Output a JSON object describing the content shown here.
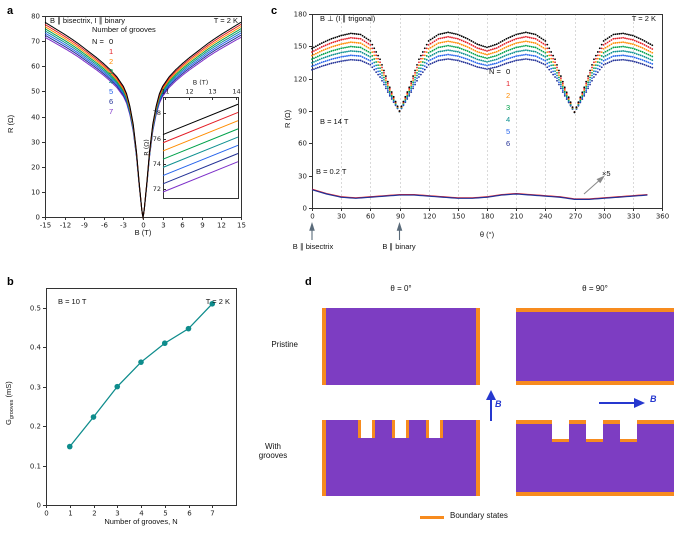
{
  "panel_letters": {
    "a": "a",
    "b": "b",
    "c": "c",
    "d": "d"
  },
  "colors": {
    "series": [
      "#000000",
      "#e41e26",
      "#ff8c00",
      "#00a24b",
      "#0d9090",
      "#2563eb",
      "#223096",
      "#7d30c9"
    ],
    "panel_b_line": "#0e8c8c",
    "axis": "#333333",
    "grid": "#d9d9d9",
    "purple": "#7d3dc2",
    "orange": "#f78b1e",
    "arrow_blue": "#2638cf",
    "annotation_arrow": "#8a8a8a",
    "tick_arrow": "#5a6b7a"
  },
  "chart_data": [
    {
      "id": "a",
      "type": "line",
      "title_left": "B ∥ bisectrix, I ∥ binary",
      "title_right": "T = 2 K",
      "xlabel": "B (T)",
      "ylabel": "R (Ω)",
      "xlim": [
        -15,
        15
      ],
      "ylim": [
        0,
        80
      ],
      "xticks": [
        -15,
        -12,
        -9,
        -6,
        -3,
        0,
        3,
        6,
        9,
        12,
        15
      ],
      "yticks": [
        0,
        10,
        20,
        30,
        40,
        50,
        60,
        70,
        80
      ],
      "legend_title": "Number of grooves",
      "legend_prefix": "N = ",
      "series_labels": [
        "0",
        "1",
        "2",
        "3",
        "4",
        "5",
        "6",
        "7"
      ],
      "series_scale_step": 0.011,
      "base_curve": {
        "B": [
          0,
          0.15,
          0.3,
          0.6,
          1,
          1.5,
          2,
          2.5,
          3,
          4,
          5,
          6,
          7,
          8,
          9,
          10,
          11,
          12,
          13,
          14,
          15
        ],
        "R": [
          0,
          2,
          6,
          14,
          26,
          37,
          44,
          49,
          52,
          55.8,
          58.6,
          61,
          63.2,
          65.2,
          67.2,
          69.2,
          71,
          72.7,
          74.3,
          75.9,
          77.5
        ]
      },
      "inset": {
        "xlabel": "B (T)",
        "ylabel": "R (Ω)",
        "xlim": [
          10.9,
          14.1
        ],
        "ylim": [
          71.3,
          79.3
        ],
        "xticks": [
          11,
          12,
          13,
          14
        ],
        "yticks": [
          72,
          74,
          76,
          78
        ],
        "line_R_at_11T_N0": 76.4,
        "line_step_per_N": 0.65,
        "line_slope_per_T": 0.75
      }
    },
    {
      "id": "b",
      "type": "line",
      "anno_left": "B = 10 T",
      "anno_right": "T = 2 K",
      "xlabel": "Number of grooves, N",
      "ylabel_main": "G",
      "ylabel_sub": "grooves",
      "ylabel_unit": " (mS)",
      "xlim": [
        0,
        8
      ],
      "ylim": [
        0,
        0.55
      ],
      "xticks": [
        0,
        1,
        2,
        3,
        4,
        5,
        6,
        7
      ],
      "yticks": [
        0,
        0.1,
        0.2,
        0.3,
        0.4,
        0.5
      ],
      "x": [
        1,
        2,
        3,
        4,
        5,
        6,
        7
      ],
      "y": [
        0.148,
        0.223,
        0.3,
        0.362,
        0.41,
        0.447,
        0.51
      ]
    },
    {
      "id": "c",
      "type": "scatter",
      "title_left": "B ⊥ (I ∥ trigonal)",
      "title_right": "T = 2 K",
      "xlabel": "θ (°)",
      "ylabel": "R (Ω)",
      "xlim": [
        0,
        360
      ],
      "ylim": [
        0,
        180
      ],
      "xticks": [
        0,
        30,
        60,
        90,
        120,
        150,
        180,
        210,
        240,
        270,
        300,
        330,
        360
      ],
      "yticks": [
        0,
        30,
        60,
        90,
        120,
        150,
        180
      ],
      "anno_high_field": "B = 14 T",
      "anno_low_field": "B = 0.2 T",
      "anno_multiplier": "×5",
      "legend_prefix": "N = ",
      "series_labels": [
        "0",
        "1",
        "2",
        "3",
        "4",
        "5",
        "6"
      ],
      "series_scale_step": 0.055,
      "min_R": 88,
      "high_field_base": {
        "theta": [
          0,
          10,
          20,
          30,
          40,
          50,
          60,
          70,
          80,
          90,
          100,
          110,
          120,
          130,
          140,
          150,
          160,
          170,
          180,
          190,
          200,
          210,
          220,
          230,
          240,
          250,
          260,
          270,
          280,
          290,
          300,
          310,
          320,
          330,
          340,
          350
        ],
        "R": [
          148,
          153,
          157,
          160,
          162,
          161,
          155,
          138,
          112,
          90,
          112,
          138,
          155,
          161,
          163,
          161,
          157,
          152,
          149,
          152,
          157,
          161,
          163,
          161,
          155,
          138,
          112,
          89,
          112,
          138,
          155,
          161,
          162,
          160,
          156,
          151
        ]
      },
      "low_field": {
        "theta": [
          0,
          15,
          30,
          45,
          60,
          75,
          90,
          105,
          120,
          135,
          150,
          165,
          180,
          195,
          210,
          225,
          240,
          255,
          270,
          285,
          300,
          315,
          330,
          345
        ],
        "R": [
          17,
          13,
          10,
          9,
          10,
          11,
          12,
          12,
          11,
          10,
          9,
          9,
          10,
          12,
          13,
          12,
          11,
          10,
          8,
          8,
          9,
          10,
          11,
          12
        ]
      },
      "below_labels": [
        "B ∥ bisectrix",
        "B ∥ binary"
      ],
      "below_label_theta": [
        0,
        90
      ]
    }
  ],
  "panel_d": {
    "col_headers": [
      "θ = 0°",
      "θ = 90°"
    ],
    "row_labels": [
      "Pristine",
      "With grooves"
    ],
    "field_label": "B",
    "legend_label": "Boundary states"
  }
}
